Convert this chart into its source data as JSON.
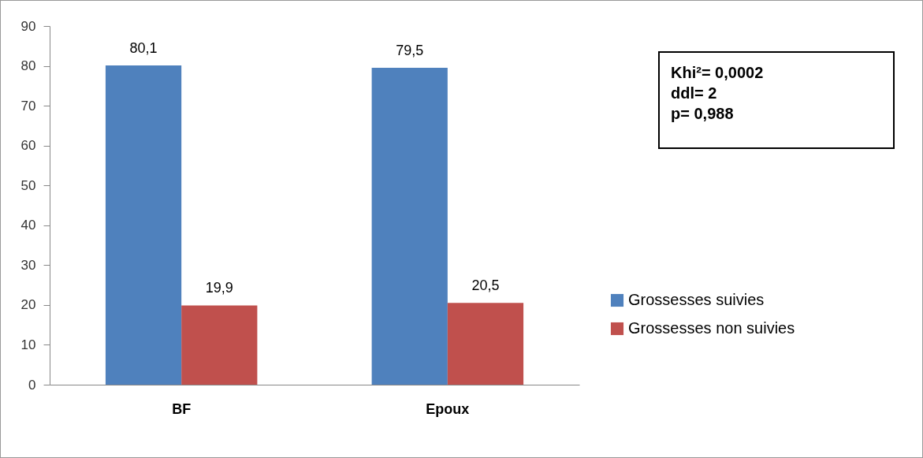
{
  "chart_data": {
    "type": "bar",
    "categories": [
      "BF",
      "Epoux"
    ],
    "series": [
      {
        "name": "Grossesses suivies",
        "color": "#4f81bd",
        "values": [
          80.1,
          79.5
        ],
        "value_labels": [
          "80,1",
          "79,5"
        ]
      },
      {
        "name": "Grossesses non suivies",
        "color": "#c0504d",
        "values": [
          19.9,
          20.5
        ],
        "value_labels": [
          "19,9",
          "20,5"
        ]
      }
    ],
    "ylim": [
      0,
      90
    ],
    "yticks": [
      0,
      10,
      20,
      30,
      40,
      50,
      60,
      70,
      80,
      90
    ],
    "grid": false,
    "legend": "right",
    "annotations": [
      "Khi²= 0,0002",
      "ddl= 2",
      "p= 0,988"
    ]
  }
}
